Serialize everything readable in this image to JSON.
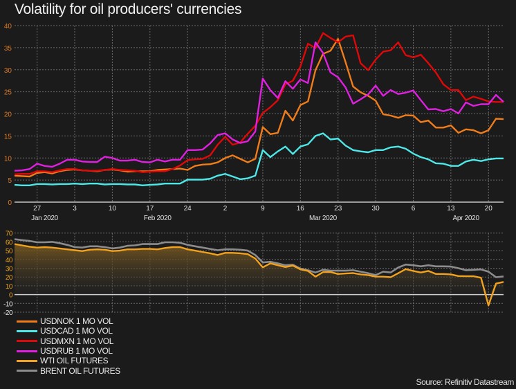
{
  "title": "Volatility for oil producers' currencies",
  "source": "Source: Refinitiv Datastream",
  "colors": {
    "background": "#1b1b1b",
    "usdnok": "#f07d1a",
    "usdcad": "#4ee8e8",
    "usdmxn": "#e00808",
    "usdrub": "#e020e0",
    "wti": "#f2a21e",
    "brent": "#8c8c8c",
    "axis_top": "#e07a1f",
    "axis_bottom": "#e8a020"
  },
  "chart_data": [
    {
      "type": "line",
      "title": "Volatility for oil producers' currencies",
      "ylim": [
        0,
        40
      ],
      "yticks": [
        "0",
        "5",
        "10",
        "15",
        "20",
        "25",
        "30",
        "35",
        "40"
      ],
      "xticks": [
        {
          "date": "2020-01-27",
          "label": "27"
        },
        {
          "date": "2020-02-03",
          "label": "3"
        },
        {
          "date": "2020-02-10",
          "label": "10"
        },
        {
          "date": "2020-02-17",
          "label": "17"
        },
        {
          "date": "2020-02-24",
          "label": "24"
        },
        {
          "date": "2020-03-02",
          "label": "2"
        },
        {
          "date": "2020-03-09",
          "label": "9"
        },
        {
          "date": "2020-03-16",
          "label": "16"
        },
        {
          "date": "2020-03-23",
          "label": "23"
        },
        {
          "date": "2020-03-30",
          "label": "30"
        },
        {
          "date": "2020-04-06",
          "label": "6"
        },
        {
          "date": "2020-04-13",
          "label": "13"
        },
        {
          "date": "2020-04-20",
          "label": "20"
        }
      ],
      "month_labels": [
        {
          "date": "2020-01-28",
          "label": "Jan 2020"
        },
        {
          "date": "2020-02-18",
          "label": "Feb 2020"
        },
        {
          "date": "2020-03-19",
          "label": "Mar 2020"
        },
        {
          "date": "2020-04-15",
          "label": "Apr 2020"
        }
      ],
      "grid": true,
      "series": [
        {
          "name": "USDNOK 1 MO VOL",
          "color": "#f07d1a",
          "values": [
            6,
            5.9,
            5.8,
            6.6,
            6.8,
            6.5,
            7,
            7.3,
            7.4,
            7.2,
            7.1,
            7,
            7.3,
            7.4,
            7.2,
            6.9,
            7,
            7,
            7,
            7.3,
            7.4,
            7.5,
            7.6,
            7.3,
            8.2,
            8.5,
            8.6,
            9,
            10,
            10.6,
            9.8,
            9,
            9.8,
            17,
            15.4,
            15.7,
            20.7,
            18.5,
            22,
            22.8,
            29.9,
            33.6,
            34.3,
            37,
            31.7,
            26.2,
            24.9,
            24.1,
            23,
            19.9,
            19.6,
            19.1,
            19.7,
            19.6,
            18.1,
            18.5,
            16.9,
            16.9,
            17.4,
            15.7,
            16.5,
            16.3,
            15.6,
            16.3,
            18.9,
            18.8
          ]
        },
        {
          "name": "USDCAD 1 MO VOL",
          "color": "#4ee8e8",
          "values": [
            3.9,
            3.8,
            3.8,
            4.1,
            4.1,
            4,
            4.1,
            4.1,
            4.2,
            4.1,
            4.2,
            4.2,
            4,
            4.1,
            4.1,
            4,
            4,
            3.8,
            3.9,
            4,
            4.2,
            4.2,
            4.2,
            5.1,
            5.1,
            5.1,
            5.3,
            6,
            6.4,
            5.8,
            5.2,
            5.4,
            6,
            11.8,
            10.2,
            11.5,
            12.6,
            10.9,
            12.6,
            13.1,
            15,
            15.6,
            14.2,
            14.4,
            12.8,
            11.8,
            11.5,
            11.3,
            11.8,
            11.8,
            12.4,
            12.6,
            12.1,
            11,
            10.2,
            9.7,
            8.8,
            8.7,
            8.2,
            8.2,
            9.2,
            9.6,
            9.3,
            9.7,
            9.9,
            9.9
          ]
        },
        {
          "name": "USDMXN 1 MO VOL",
          "color": "#e00808",
          "values": [
            6.3,
            6.4,
            6.4,
            7,
            7,
            6.8,
            7.2,
            7.5,
            7.5,
            7.2,
            7.1,
            7.1,
            7.3,
            7.5,
            7.3,
            7.2,
            7.1,
            6.8,
            6.9,
            7,
            7,
            7.5,
            8.3,
            9.5,
            9.7,
            9.8,
            10.6,
            13,
            14.8,
            13,
            13.5,
            15.5,
            17.3,
            20.2,
            21.5,
            23.1,
            26.7,
            27.5,
            30.7,
            35.9,
            34.9,
            38.3,
            37.2,
            36.2,
            37.5,
            37.8,
            31.5,
            29.9,
            32.3,
            34.1,
            34.4,
            36.2,
            33.3,
            32.8,
            33.4,
            31.5,
            29.4,
            26.7,
            25.4,
            25.4,
            23.1,
            23.9,
            23.4,
            22.8,
            22.7,
            22.7
          ]
        },
        {
          "name": "USDRUB 1 MO VOL",
          "color": "#e020e0",
          "values": [
            7.1,
            7.2,
            7.5,
            8.7,
            8.2,
            8,
            8.7,
            9.6,
            9.6,
            9.2,
            9.1,
            9.1,
            10.3,
            10,
            9.4,
            9.4,
            9.6,
            9.1,
            9,
            9.6,
            9.2,
            9.6,
            9.6,
            11.8,
            11.8,
            11.9,
            13.3,
            15.2,
            15.6,
            14.2,
            13.4,
            13.8,
            16,
            28,
            25.4,
            23.6,
            27.4,
            25.7,
            27.8,
            27,
            36.2,
            33.8,
            29.4,
            28.3,
            26,
            22.3,
            23.3,
            24.4,
            26.4,
            24.1,
            25.4,
            24.5,
            24.8,
            25.3,
            23.1,
            21,
            21.1,
            20.6,
            21.1,
            20.1,
            22.6,
            21.8,
            22.2,
            22.2,
            24.3,
            22.7
          ]
        }
      ]
    },
    {
      "type": "area",
      "ylim": [
        -20,
        70
      ],
      "yticks": [
        "-20",
        "-10",
        "0",
        "10",
        "20",
        "30",
        "40",
        "50",
        "60",
        "70"
      ],
      "grid": true,
      "series": [
        {
          "name": "WTI OIL FUTURES",
          "color": "#f2a21e",
          "values": [
            57.5,
            56,
            54.5,
            53.5,
            54,
            53.5,
            52.5,
            51.5,
            50.5,
            49.5,
            51,
            51.5,
            51,
            49.5,
            50,
            51.5,
            51.5,
            52,
            52,
            51.5,
            53,
            54,
            54,
            51.5,
            50,
            48.5,
            47,
            45,
            47.5,
            47.5,
            47,
            46,
            41,
            31,
            35.5,
            33.4,
            31.3,
            33,
            28.7,
            26.9,
            20.4,
            25.6,
            25.6,
            23.5,
            24,
            24.5,
            23,
            22.2,
            20.4,
            20.4,
            19.8,
            24.3,
            29,
            26.9,
            25.1,
            26.9,
            23.5,
            23.5,
            23,
            21.1,
            20.9,
            20.9,
            19.1,
            -12.3,
            12.5,
            14.4
          ]
        },
        {
          "name": "BRENT OIL FUTURES",
          "color": "#8c8c8c",
          "values": [
            63,
            62,
            61,
            59.5,
            59.5,
            60,
            58.5,
            56.5,
            54,
            53.5,
            55,
            55,
            54,
            52.5,
            53.5,
            55.5,
            56,
            57.5,
            57.5,
            57.5,
            59.5,
            59.5,
            59,
            56.5,
            55,
            53.5,
            52,
            50.5,
            51.5,
            51.5,
            51,
            50,
            45,
            36.5,
            37.3,
            35.5,
            33.4,
            34,
            29.5,
            27.7,
            25.1,
            28.2,
            27.2,
            27.2,
            27.2,
            27.7,
            26.1,
            24.3,
            22.2,
            26.1,
            25.1,
            30.8,
            34.2,
            33.4,
            32.1,
            33.4,
            32.1,
            32.1,
            31.9,
            30,
            27.7,
            28.2,
            28.7,
            26.1,
            19.8,
            20.6
          ]
        }
      ]
    }
  ],
  "dates": [
    "2020-01-22",
    "2020-01-23",
    "2020-01-24",
    "2020-01-27",
    "2020-01-28",
    "2020-01-29",
    "2020-01-30",
    "2020-01-31",
    "2020-02-03",
    "2020-02-04",
    "2020-02-05",
    "2020-02-06",
    "2020-02-07",
    "2020-02-10",
    "2020-02-11",
    "2020-02-12",
    "2020-02-13",
    "2020-02-14",
    "2020-02-17",
    "2020-02-18",
    "2020-02-19",
    "2020-02-20",
    "2020-02-21",
    "2020-02-24",
    "2020-02-25",
    "2020-02-26",
    "2020-02-27",
    "2020-02-28",
    "2020-03-02",
    "2020-03-03",
    "2020-03-04",
    "2020-03-05",
    "2020-03-06",
    "2020-03-09",
    "2020-03-10",
    "2020-03-11",
    "2020-03-12",
    "2020-03-13",
    "2020-03-16",
    "2020-03-17",
    "2020-03-18",
    "2020-03-19",
    "2020-03-20",
    "2020-03-23",
    "2020-03-24",
    "2020-03-25",
    "2020-03-26",
    "2020-03-27",
    "2020-03-30",
    "2020-03-31",
    "2020-04-01",
    "2020-04-02",
    "2020-04-03",
    "2020-04-06",
    "2020-04-07",
    "2020-04-08",
    "2020-04-09",
    "2020-04-10",
    "2020-04-13",
    "2020-04-14",
    "2020-04-15",
    "2020-04-16",
    "2020-04-17",
    "2020-04-20",
    "2020-04-21",
    "2020-04-22"
  ],
  "legend": [
    {
      "label": "USDNOK 1 MO VOL",
      "color": "#f07d1a"
    },
    {
      "label": "USDCAD 1 MO VOL",
      "color": "#4ee8e8"
    },
    {
      "label": "USDMXN 1 MO VOL",
      "color": "#e00808"
    },
    {
      "label": "USDRUB 1 MO VOL",
      "color": "#e020e0"
    },
    {
      "label": "WTI OIL FUTURES",
      "color": "#f2a21e"
    },
    {
      "label": "BRENT OIL FUTURES",
      "color": "#8c8c8c"
    }
  ]
}
